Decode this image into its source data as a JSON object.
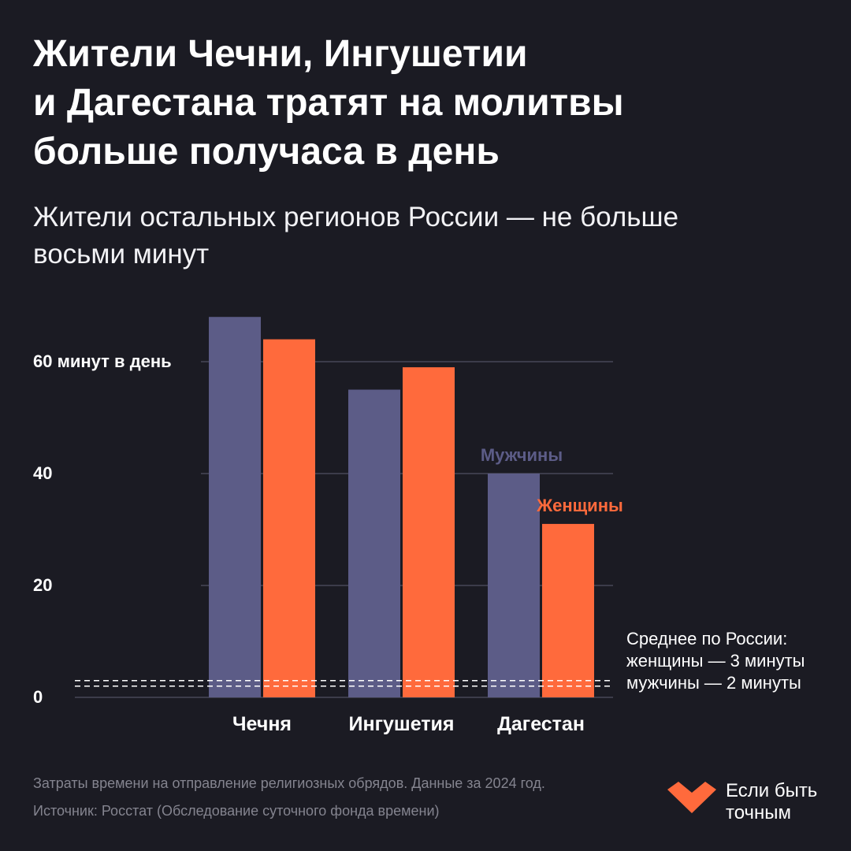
{
  "header": {
    "title_lines": [
      "Жители Чечни, Ингушетии",
      "и Дагестана тратят на молитвы",
      "больше получаса в день"
    ],
    "subtitle_lines": [
      "Жители остальных регионов России — не больше",
      "восьми минут"
    ]
  },
  "chart_data": {
    "type": "bar",
    "categories": [
      "Чечня",
      "Ингушетия",
      "Дагестан"
    ],
    "series": [
      {
        "name": "Мужчины",
        "values": [
          68,
          55,
          40
        ],
        "color": "#5c5c87"
      },
      {
        "name": "Женщины",
        "values": [
          64,
          59,
          31
        ],
        "color": "#ff6a3c"
      }
    ],
    "ylim": [
      0,
      70
    ],
    "yticks": [
      {
        "value": 0,
        "label": "0"
      },
      {
        "value": 20,
        "label": "20"
      },
      {
        "value": 40,
        "label": "40"
      },
      {
        "value": 60,
        "label": "60 минут в день"
      }
    ],
    "grid": true,
    "reference_lines": [
      {
        "value": 3,
        "style": "dashed"
      },
      {
        "value": 2,
        "style": "dashed"
      }
    ],
    "annotation_lines": [
      "Среднее по России:",
      "женщины — 3 минуты",
      "мужчины — 2 минуты"
    ],
    "legend": "inline labels above Dagestan bars"
  },
  "footer": {
    "note": "Затраты времени на отправление религиозных обрядов. Данные за 2024 год.",
    "source": "Источник: Росстат (Обследование суточного фонда времени)"
  },
  "brand": {
    "lines": [
      "Если быть",
      "точным"
    ],
    "logo_icon": "heart-chevron-logo-icon",
    "accent": "#ff6a3c"
  },
  "colors": {
    "background": "#1b1b23",
    "grid": "#3c3c4a",
    "axis_text": "#ffffff",
    "muted_text": "#84848f"
  }
}
